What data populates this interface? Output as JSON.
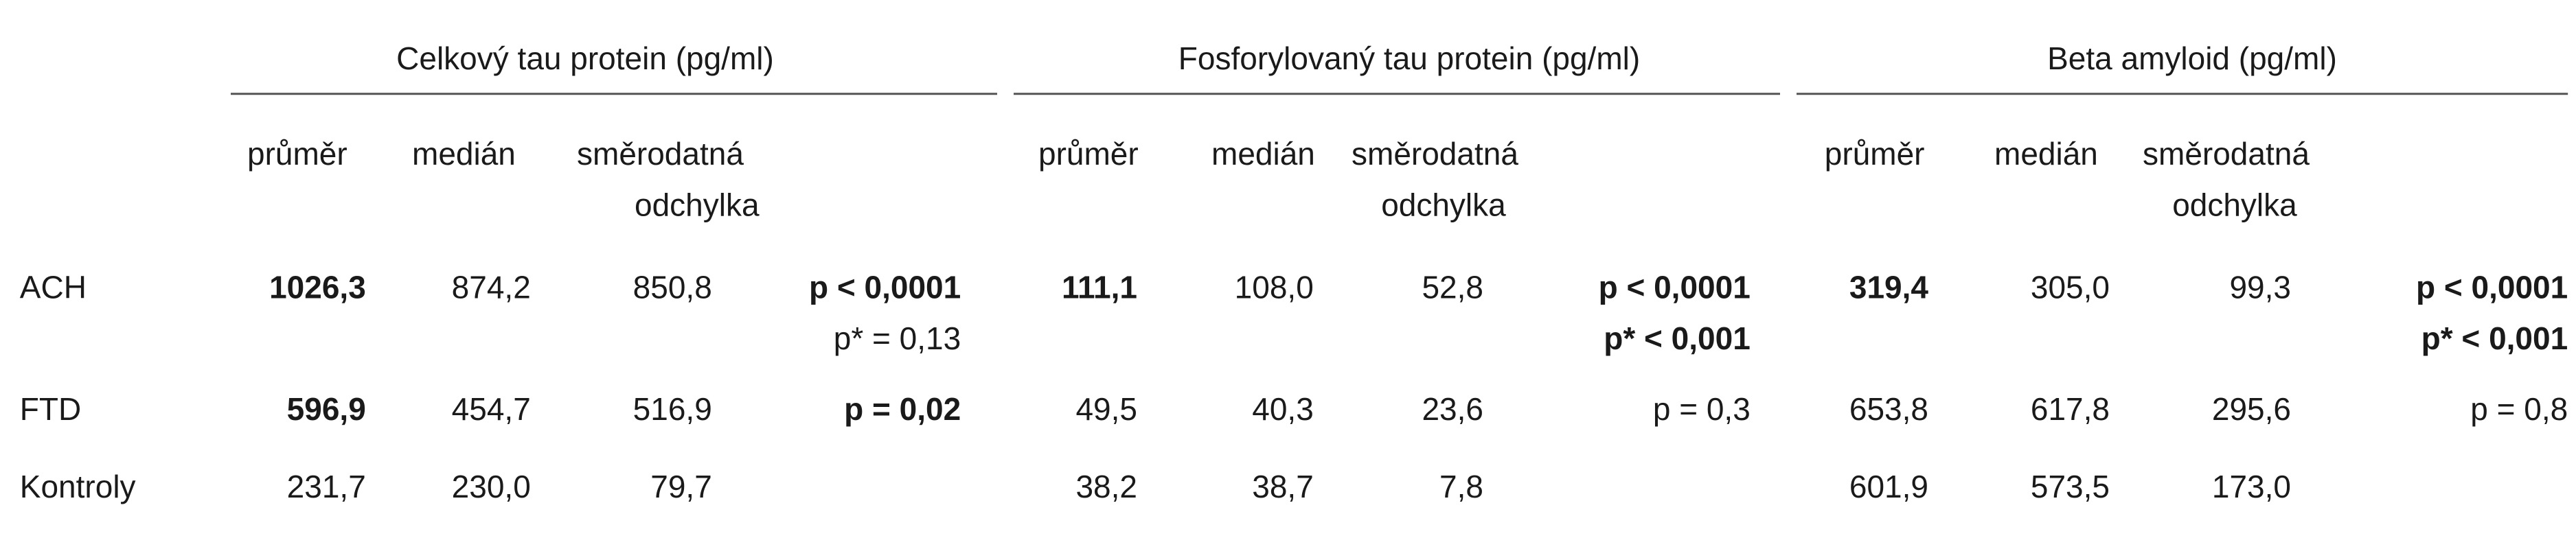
{
  "table": {
    "groups": [
      {
        "title": "Celkový tau protein (pg/ml)",
        "columns": [
          "průměr",
          "medián",
          [
            "směrodatná",
            "odchylka"
          ]
        ]
      },
      {
        "title": "Fosforylovaný tau protein (pg/ml)",
        "columns": [
          "průměr",
          "medián",
          [
            "směrodatná",
            "odchylka"
          ]
        ]
      },
      {
        "title": "Beta amyloid (pg/ml)",
        "columns": [
          "průměr",
          "medián",
          [
            "směrodatná",
            "odchylka"
          ]
        ]
      }
    ],
    "rows": [
      {
        "label": "ACH",
        "cells": [
          [
            "1026,3",
            "874,2",
            "850,8",
            [
              "p < 0,0001",
              "p* = 0,13"
            ]
          ],
          [
            "111,1",
            "108,0",
            "52,8",
            [
              "p < 0,0001",
              "p* < 0,001"
            ]
          ],
          [
            "319,4",
            "305,0",
            "99,3",
            [
              "p < 0,0001",
              "p* < 0,001"
            ]
          ]
        ]
      },
      {
        "label": "FTD",
        "cells": [
          [
            "596,9",
            "454,7",
            "516,9",
            [
              "p = 0,02"
            ]
          ],
          [
            "49,5",
            "40,3",
            "23,6",
            [
              "p = 0,3"
            ]
          ],
          [
            "653,8",
            "617,8",
            "295,6",
            [
              "p = 0,8"
            ]
          ]
        ]
      },
      {
        "label": "Kontroly",
        "cells": [
          [
            "231,7",
            "230,0",
            "79,7"
          ],
          [
            "38,2",
            "38,7",
            "7,8"
          ],
          [
            "601,9",
            "573,5",
            "173,0"
          ]
        ]
      }
    ]
  }
}
